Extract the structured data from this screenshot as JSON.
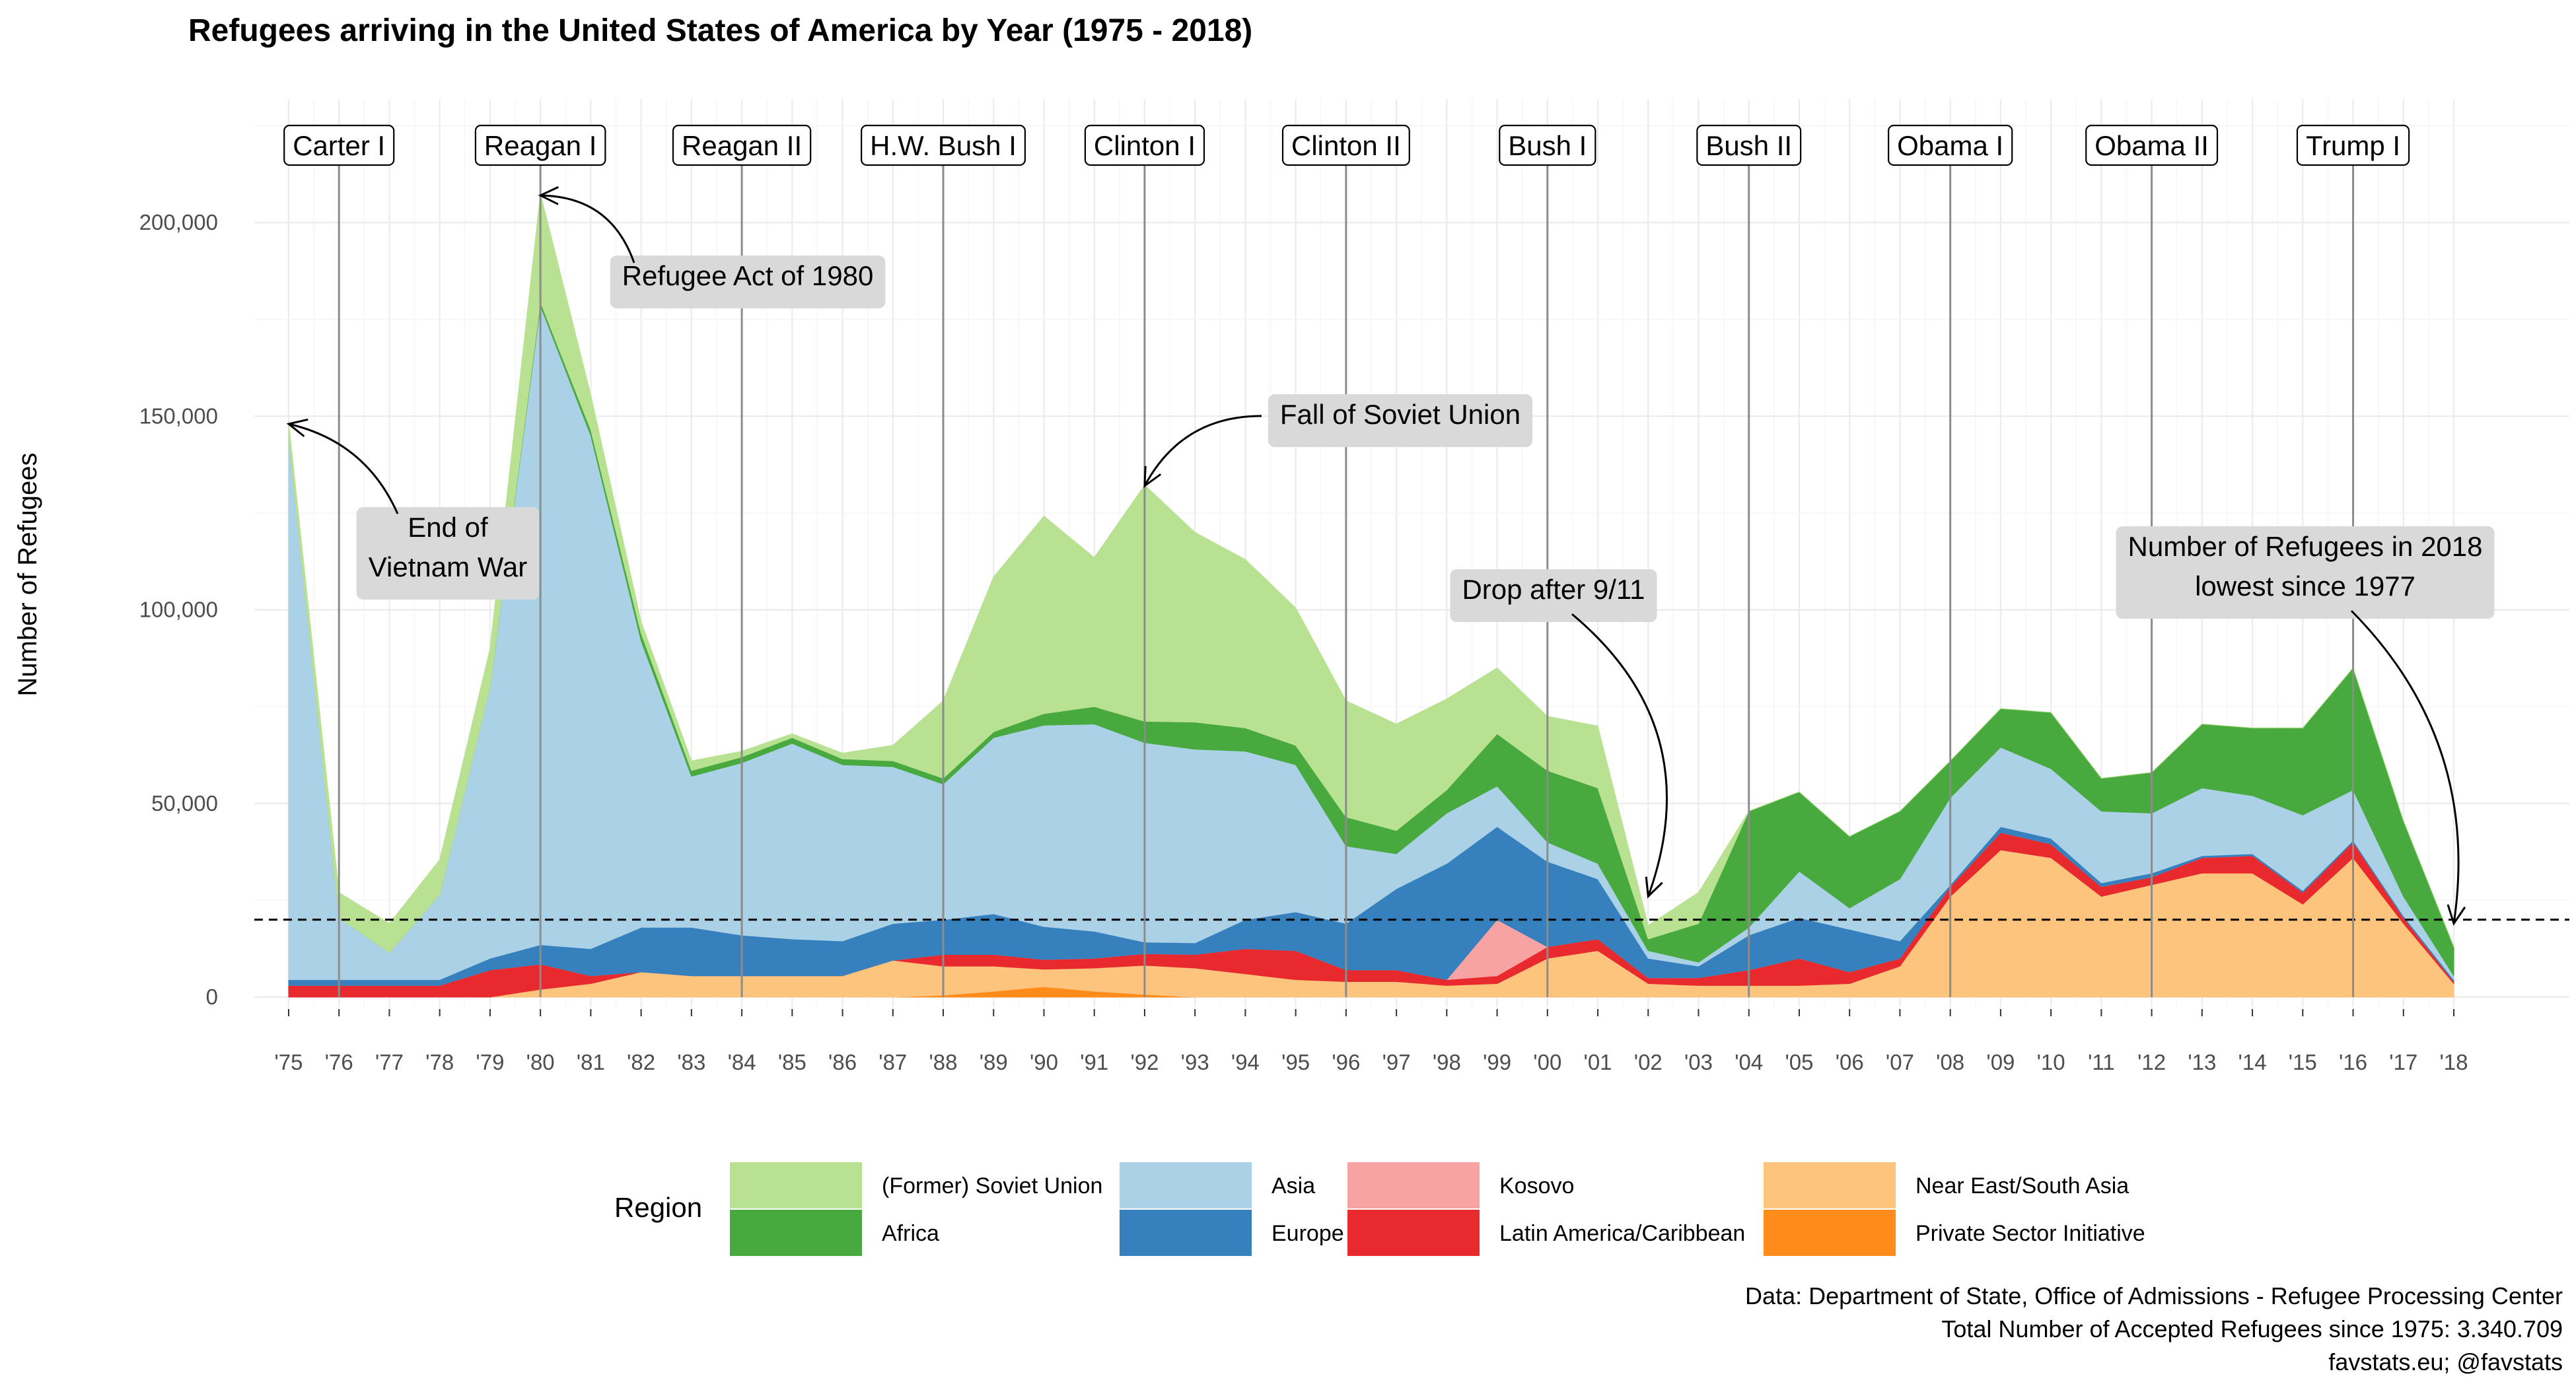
{
  "chart_data": {
    "type": "area",
    "stacked": true,
    "title": "Refugees arriving in the United States of America by Year (1975 - 2018)",
    "ylabel": "Number of Refugees",
    "xlabel": "",
    "ylim": [
      0,
      225000
    ],
    "yticks": [
      0,
      50000,
      100000,
      150000,
      200000
    ],
    "ytick_labels": [
      "0",
      "50,000",
      "100,000",
      "150,000",
      "200,000"
    ],
    "grid": true,
    "legend_title": "Region",
    "legend_position": "bottom",
    "reference_line": {
      "y": 20000,
      "style": "dashed"
    },
    "x": [
      1975,
      1976,
      1977,
      1978,
      1979,
      1980,
      1981,
      1982,
      1983,
      1984,
      1985,
      1986,
      1987,
      1988,
      1989,
      1990,
      1991,
      1992,
      1993,
      1994,
      1995,
      1996,
      1997,
      1998,
      1999,
      2000,
      2001,
      2002,
      2003,
      2004,
      2005,
      2006,
      2007,
      2008,
      2009,
      2010,
      2011,
      2012,
      2013,
      2014,
      2015,
      2016,
      2017,
      2018
    ],
    "x_labels": [
      "'75",
      "'76",
      "'77",
      "'78",
      "'79",
      "'80",
      "'81",
      "'82",
      "'83",
      "'84",
      "'85",
      "'86",
      "'87",
      "'88",
      "'89",
      "'90",
      "'91",
      "'92",
      "'93",
      "'94",
      "'95",
      "'96",
      "'97",
      "'98",
      "'99",
      "'00",
      "'01",
      "'02",
      "'03",
      "'04",
      "'05",
      "'06",
      "'07",
      "'08",
      "'09",
      "'10",
      "'11",
      "'12",
      "'13",
      "'14",
      "'15",
      "'16",
      "'17",
      "'18"
    ],
    "series": [
      {
        "name": "Private Sector Initiative",
        "color": "#ff8c1a",
        "values": [
          0,
          0,
          0,
          0,
          0,
          0,
          0,
          0,
          0,
          0,
          0,
          0,
          0,
          500,
          1500,
          2700,
          1500,
          700,
          0,
          0,
          0,
          0,
          0,
          0,
          0,
          0,
          0,
          0,
          0,
          0,
          0,
          0,
          0,
          0,
          0,
          0,
          0,
          0,
          0,
          0,
          0,
          0,
          0,
          0
        ]
      },
      {
        "name": "Near East/South Asia",
        "color": "#fdc47d",
        "values": [
          0,
          0,
          0,
          0,
          0,
          2000,
          3500,
          6500,
          5500,
          5500,
          5500,
          5500,
          9500,
          7500,
          6500,
          4500,
          6000,
          7500,
          7500,
          6000,
          4500,
          4000,
          4000,
          3000,
          3500,
          10000,
          12000,
          3500,
          3000,
          3000,
          3000,
          3500,
          8000,
          26000,
          38000,
          36000,
          26000,
          29000,
          32000,
          32000,
          24000,
          36000,
          19000,
          3500
        ]
      },
      {
        "name": "Latin America/Caribbean",
        "color": "#e8292e",
        "values": [
          3000,
          3000,
          3000,
          3000,
          7000,
          6500,
          2000,
          0,
          0,
          0,
          0,
          0,
          0,
          3000,
          3000,
          2500,
          2500,
          3000,
          3500,
          6500,
          7500,
          3000,
          3000,
          1500,
          2000,
          3000,
          3000,
          1500,
          2000,
          4000,
          7000,
          3000,
          2000,
          2500,
          4500,
          3500,
          2500,
          2000,
          4000,
          4500,
          3000,
          4000,
          1500,
          500
        ]
      },
      {
        "name": "Kosovo",
        "color": "#f8a3a3",
        "values": [
          0,
          0,
          0,
          0,
          0,
          0,
          0,
          0,
          0,
          0,
          0,
          0,
          0,
          0,
          0,
          0,
          0,
          0,
          0,
          0,
          0,
          0,
          0,
          0,
          14500,
          0,
          0,
          0,
          0,
          0,
          0,
          0,
          0,
          0,
          0,
          0,
          0,
          0,
          0,
          0,
          0,
          0,
          0,
          0
        ]
      },
      {
        "name": "Europe",
        "color": "#3680bd",
        "values": [
          1500,
          1500,
          1500,
          1500,
          3000,
          5000,
          7000,
          11500,
          12500,
          10500,
          9500,
          9000,
          9500,
          9000,
          10500,
          8500,
          7000,
          3000,
          3000,
          7500,
          10000,
          12000,
          21000,
          30000,
          24000,
          22000,
          15500,
          5000,
          3000,
          9000,
          10500,
          11000,
          4500,
          500,
          1500,
          1500,
          1000,
          1000,
          500,
          500,
          500,
          500,
          500,
          500
        ]
      },
      {
        "name": "Asia",
        "color": "#aad1e5",
        "values": [
          140000,
          16000,
          7000,
          22000,
          70000,
          165000,
          132500,
          74000,
          39000,
          44500,
          50500,
          45500,
          40500,
          35000,
          45500,
          52000,
          53500,
          51500,
          50000,
          43500,
          38000,
          20000,
          9000,
          13000,
          10500,
          5000,
          4000,
          2000,
          1000,
          2000,
          12000,
          5500,
          16000,
          22500,
          20500,
          18000,
          18500,
          15500,
          17500,
          15000,
          19500,
          13000,
          5000,
          1000
        ]
      },
      {
        "name": "Africa",
        "color": "#47a93e",
        "values": [
          0,
          0,
          0,
          0,
          0,
          1000,
          1500,
          2000,
          1500,
          1500,
          1500,
          1500,
          1500,
          1500,
          1500,
          3000,
          4500,
          5500,
          7000,
          6000,
          5000,
          7500,
          6000,
          6000,
          13500,
          18500,
          19500,
          3000,
          10000,
          30000,
          20500,
          18500,
          17500,
          9500,
          10000,
          14500,
          8500,
          10500,
          16500,
          17500,
          22500,
          31500,
          19500,
          7500
        ]
      },
      {
        "name": "(Former) Soviet Union",
        "color": "#b8e192",
        "values": [
          4000,
          6500,
          7500,
          9000,
          10000,
          28000,
          9000,
          3000,
          2500,
          1500,
          1000,
          1500,
          4000,
          20000,
          40000,
          51000,
          38500,
          61000,
          49000,
          43500,
          35500,
          30000,
          27500,
          23500,
          17000,
          14000,
          16000,
          3500,
          8000,
          0,
          0,
          0,
          0,
          0,
          0,
          0,
          0,
          0,
          0,
          0,
          0,
          0,
          0,
          0
        ]
      }
    ],
    "presidencies": [
      {
        "label": "Carter I",
        "x": 1976
      },
      {
        "label": "Reagan I",
        "x": 1980
      },
      {
        "label": "Reagan II",
        "x": 1984
      },
      {
        "label": "H.W. Bush I",
        "x": 1988
      },
      {
        "label": "Clinton I",
        "x": 1992
      },
      {
        "label": "Clinton II",
        "x": 1996
      },
      {
        "label": "Bush I",
        "x": 2000
      },
      {
        "label": "Bush II",
        "x": 2004
      },
      {
        "label": "Obama I",
        "x": 2008
      },
      {
        "label": "Obama II",
        "x": 2012
      },
      {
        "label": "Trump I",
        "x": 2016
      }
    ],
    "annotations": [
      {
        "lines": [
          "End of",
          "Vietnam War"
        ],
        "target_x": 1975,
        "target_y": 148000
      },
      {
        "lines": [
          "Refugee Act of 1980"
        ],
        "target_x": 1980,
        "target_y": 207000
      },
      {
        "lines": [
          "Fall of Soviet Union"
        ],
        "target_x": 1992,
        "target_y": 132000
      },
      {
        "lines": [
          "Drop after 9/11"
        ],
        "target_x": 2002,
        "target_y": 26000
      },
      {
        "lines": [
          "Number of Refugees in 2018",
          "lowest since 1977"
        ],
        "target_x": 2018,
        "target_y": 19000
      }
    ]
  },
  "caption": [
    "Data: Department of State, Office of Admissions - Refugee Processing Center",
    "Total Number of Accepted Refugees since 1975: 3.340.709",
    "favstats.eu; @favstats"
  ],
  "legend_order": [
    "(Former) Soviet Union",
    "Africa",
    "Asia",
    "Europe",
    "Kosovo",
    "Latin America/Caribbean",
    "Near East/South Asia",
    "Private Sector Initiative"
  ]
}
